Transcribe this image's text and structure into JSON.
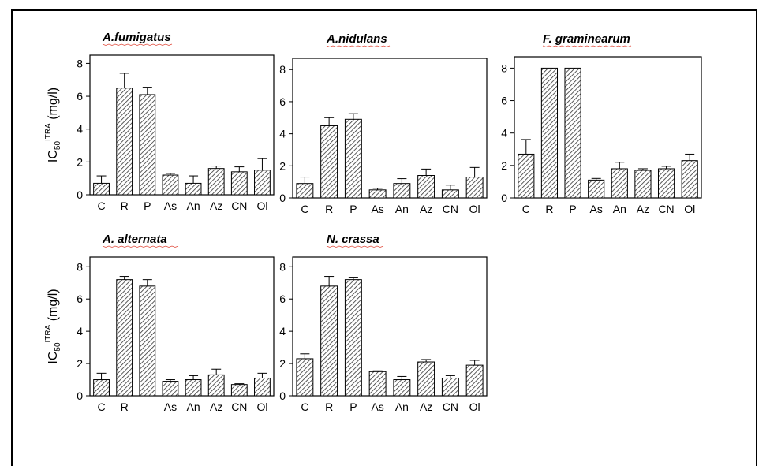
{
  "chart_data": [
    {
      "type": "bar",
      "title": "A.fumigatus",
      "ylabel": "IC50 ITRA (mg/l)",
      "yticks": [
        "0",
        "2",
        "4",
        "6",
        "8"
      ],
      "ylim": [
        0,
        8.5
      ],
      "categories": [
        "C",
        "R",
        "P",
        "As",
        "An",
        "Az",
        "CN",
        "Ol"
      ],
      "values": [
        0.7,
        6.5,
        6.1,
        1.2,
        0.7,
        1.6,
        1.4,
        1.5
      ],
      "errors": [
        0.45,
        0.9,
        0.45,
        0.1,
        0.45,
        0.15,
        0.3,
        0.7
      ]
    },
    {
      "type": "bar",
      "title": "A.nidulans",
      "yticks": [
        "0",
        "2",
        "4",
        "6",
        "8"
      ],
      "ylim": [
        0,
        8.7
      ],
      "categories": [
        "C",
        "R",
        "P",
        "As",
        "An",
        "Az",
        "CN",
        "Ol"
      ],
      "values": [
        0.9,
        4.5,
        4.9,
        0.5,
        0.9,
        1.4,
        0.5,
        1.3
      ],
      "errors": [
        0.4,
        0.5,
        0.35,
        0.1,
        0.3,
        0.4,
        0.3,
        0.6
      ]
    },
    {
      "type": "bar",
      "title": "F. graminearum",
      "yticks": [
        "0",
        "2",
        "4",
        "6",
        "8"
      ],
      "ylim": [
        0,
        8.7
      ],
      "categories": [
        "C",
        "R",
        "P",
        "As",
        "An",
        "Az",
        "CN",
        "Ol"
      ],
      "values": [
        2.7,
        8.0,
        8.0,
        1.1,
        1.8,
        1.7,
        1.8,
        2.3
      ],
      "errors": [
        0.9,
        0,
        0,
        0.1,
        0.4,
        0.1,
        0.15,
        0.4
      ]
    },
    {
      "type": "bar",
      "title": "A. alternata",
      "ylabel": "IC50 ITRA (mg/l)",
      "yticks": [
        "0",
        "2",
        "4",
        "6",
        "8"
      ],
      "ylim": [
        0,
        8.6
      ],
      "categories": [
        "C",
        "R",
        "",
        "As",
        "An",
        "Az",
        "CN",
        "Ol"
      ],
      "values": [
        1.0,
        7.2,
        6.8,
        0.9,
        1.0,
        1.3,
        0.7,
        1.1
      ],
      "errors": [
        0.4,
        0.2,
        0.4,
        0.1,
        0.25,
        0.35,
        0.05,
        0.3
      ]
    },
    {
      "type": "bar",
      "title": "N. crassa",
      "yticks": [
        "0",
        "2",
        "4",
        "6",
        "8"
      ],
      "ylim": [
        0,
        8.6
      ],
      "categories": [
        "C",
        "R",
        "P",
        "As",
        "An",
        "Az",
        "CN",
        "Ol"
      ],
      "values": [
        2.3,
        6.8,
        7.2,
        1.5,
        1.0,
        2.1,
        1.1,
        1.9
      ],
      "errors": [
        0.3,
        0.6,
        0.15,
        0.05,
        0.2,
        0.15,
        0.15,
        0.3
      ]
    }
  ]
}
